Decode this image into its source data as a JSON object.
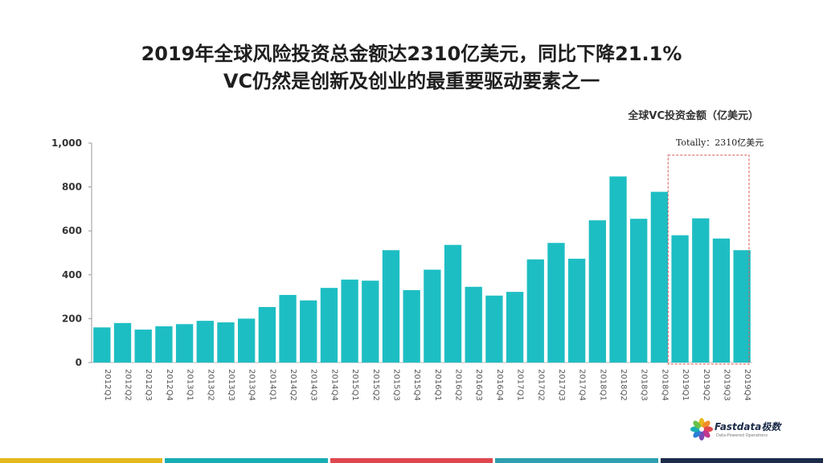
{
  "header": {
    "title_line1": "2019年全球风险投资总金额达2310亿美元，同比下降21.1%",
    "title_line2": "VC仍然是创新及创业的最重要驱动要素之一"
  },
  "chart_data": {
    "type": "bar",
    "unit_label": "全球VC投资金额（亿美元）",
    "categories": [
      "2012Q1",
      "2012Q2",
      "2012Q3",
      "2012Q4",
      "2013Q1",
      "2013Q2",
      "2013Q3",
      "2013Q4",
      "2014Q1",
      "2014Q2",
      "2014Q3",
      "2014Q4",
      "2015Q1",
      "2015Q2",
      "2015Q3",
      "2015Q4",
      "2016Q1",
      "2016Q2",
      "2016Q3",
      "2016Q4",
      "2017Q1",
      "2017Q2",
      "2017Q3",
      "2017Q4",
      "2018Q1",
      "2018Q2",
      "2018Q3",
      "2018Q4",
      "2019Q1",
      "2019Q2",
      "2019Q3",
      "2019Q4"
    ],
    "values": [
      160,
      180,
      150,
      165,
      175,
      190,
      183,
      200,
      253,
      308,
      283,
      340,
      378,
      373,
      512,
      330,
      423,
      536,
      345,
      305,
      322,
      470,
      545,
      473,
      648,
      848,
      655,
      778,
      580,
      657,
      565,
      512
    ],
    "ylim": [
      0,
      1000
    ],
    "yticks": [
      "0",
      "200",
      "400",
      "600",
      "800",
      "1,000"
    ],
    "annotation": "Totally：2310亿美元",
    "bar_color": "#1dbec3",
    "highlight_box_color": "#d9534f"
  },
  "footer": {
    "brand": "Fastdata极数",
    "tagline": "Data-Powered Operations",
    "stripe_colors": [
      "#e5b81f",
      "#17aeb3",
      "#e0474f",
      "#2c9fb0",
      "#1c2b4a"
    ]
  }
}
